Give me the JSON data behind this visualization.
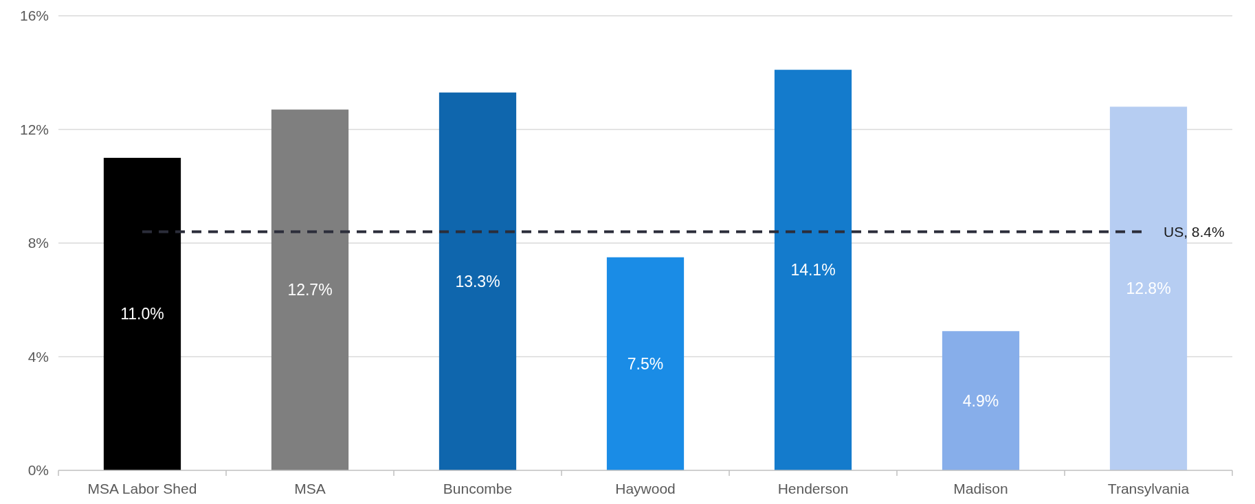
{
  "chart_data": {
    "type": "bar",
    "categories": [
      "MSA Labor Shed",
      "MSA",
      "Buncombe",
      "Haywood",
      "Henderson",
      "Madison",
      "Transylvania"
    ],
    "values": [
      11.0,
      12.7,
      13.3,
      7.5,
      14.1,
      4.9,
      12.8
    ],
    "colors": [
      "#000000",
      "#7f7f7f",
      "#0f66ad",
      "#1a8ce6",
      "#147bcc",
      "#87aeea",
      "#b6cdf2"
    ],
    "value_labels": [
      "11.0%",
      "12.7%",
      "13.3%",
      "7.5%",
      "14.1%",
      "4.9%",
      "12.8%"
    ],
    "ylim": [
      0,
      16
    ],
    "yticks": [
      {
        "value": 0,
        "label": "0%"
      },
      {
        "value": 4,
        "label": "4%"
      },
      {
        "value": 8,
        "label": "8%"
      },
      {
        "value": 12,
        "label": "12%"
      },
      {
        "value": 16,
        "label": "16%"
      }
    ],
    "grid": "y",
    "ref_lines": [
      {
        "axis": "y",
        "value": 8.4,
        "label": "US, 8.4%",
        "color": "#2b2d3a",
        "line_style": "dashed"
      }
    ]
  }
}
